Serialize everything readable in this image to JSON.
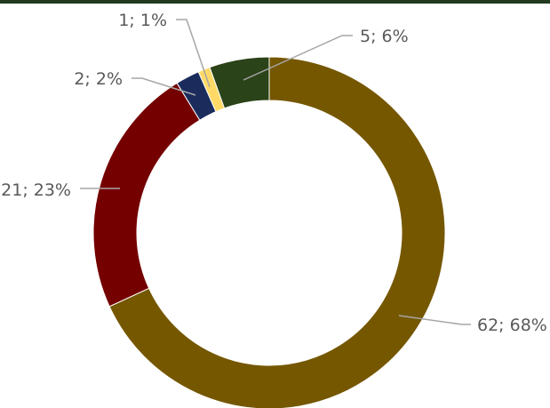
{
  "chart_data": {
    "type": "pie",
    "variant": "doughnut",
    "title": "",
    "slices": [
      {
        "value": 62,
        "label": "62; 68%",
        "color": "#755700"
      },
      {
        "value": 21,
        "label": "21; 23%",
        "color": "#750000"
      },
      {
        "value": 2,
        "label": "2; 2%",
        "color": "#1a2b5c"
      },
      {
        "value": 1,
        "label": "1; 1%",
        "color": "#ffd966"
      },
      {
        "value": 5,
        "label": "5; 6%",
        "color": "#2a4318"
      }
    ],
    "order": "clockwise-from-top",
    "legend": "none",
    "leader_line_color": "#a6a6a6",
    "label_color": "#595959"
  }
}
